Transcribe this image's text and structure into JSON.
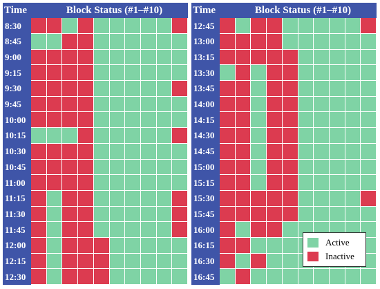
{
  "header": {
    "time_label": "Time",
    "blocks_label": "Block Status (#1–#10)"
  },
  "colors": {
    "active": "#7fd3a5",
    "inactive": "#dc3b50",
    "header_bg": "#3f55a8"
  },
  "legend": {
    "active_label": "Active",
    "inactive_label": "Inactive"
  },
  "left_rows": [
    {
      "time": "8:30",
      "status": [
        0,
        0,
        1,
        0,
        1,
        1,
        1,
        1,
        1,
        0
      ]
    },
    {
      "time": "8:45",
      "status": [
        1,
        1,
        0,
        0,
        1,
        1,
        1,
        1,
        1,
        1
      ]
    },
    {
      "time": "9:00",
      "status": [
        0,
        0,
        0,
        0,
        1,
        1,
        1,
        1,
        1,
        1
      ]
    },
    {
      "time": "9:15",
      "status": [
        0,
        0,
        0,
        0,
        1,
        1,
        1,
        1,
        1,
        1
      ]
    },
    {
      "time": "9:30",
      "status": [
        0,
        0,
        0,
        0,
        1,
        1,
        1,
        1,
        1,
        0
      ]
    },
    {
      "time": "9:45",
      "status": [
        0,
        0,
        0,
        0,
        1,
        1,
        1,
        1,
        1,
        1
      ]
    },
    {
      "time": "10:00",
      "status": [
        0,
        0,
        0,
        0,
        1,
        1,
        1,
        1,
        1,
        1
      ]
    },
    {
      "time": "10:15",
      "status": [
        1,
        1,
        1,
        0,
        1,
        1,
        1,
        1,
        1,
        0
      ]
    },
    {
      "time": "10:30",
      "status": [
        0,
        0,
        0,
        0,
        1,
        1,
        1,
        1,
        1,
        1
      ]
    },
    {
      "time": "10:45",
      "status": [
        0,
        0,
        0,
        0,
        1,
        1,
        1,
        1,
        1,
        1
      ]
    },
    {
      "time": "11:00",
      "status": [
        0,
        0,
        0,
        0,
        1,
        1,
        1,
        1,
        1,
        1
      ]
    },
    {
      "time": "11:15",
      "status": [
        0,
        1,
        0,
        0,
        1,
        1,
        1,
        1,
        1,
        0
      ]
    },
    {
      "time": "11:30",
      "status": [
        0,
        1,
        0,
        0,
        1,
        1,
        1,
        1,
        1,
        0
      ]
    },
    {
      "time": "11:45",
      "status": [
        0,
        1,
        0,
        0,
        1,
        1,
        1,
        1,
        1,
        0
      ]
    },
    {
      "time": "12:00",
      "status": [
        0,
        1,
        0,
        0,
        0,
        1,
        1,
        1,
        1,
        1
      ]
    },
    {
      "time": "12:15",
      "status": [
        0,
        1,
        0,
        0,
        0,
        1,
        1,
        1,
        1,
        1
      ]
    },
    {
      "time": "12:30",
      "status": [
        0,
        1,
        0,
        0,
        0,
        1,
        1,
        1,
        1,
        1
      ]
    }
  ],
  "right_rows": [
    {
      "time": "12:45",
      "status": [
        0,
        1,
        0,
        0,
        1,
        1,
        1,
        1,
        1,
        0
      ]
    },
    {
      "time": "13:00",
      "status": [
        0,
        0,
        0,
        0,
        1,
        1,
        1,
        1,
        1,
        1
      ]
    },
    {
      "time": "13:15",
      "status": [
        0,
        0,
        0,
        0,
        0,
        1,
        1,
        1,
        1,
        1
      ]
    },
    {
      "time": "13:30",
      "status": [
        1,
        0,
        1,
        0,
        0,
        1,
        1,
        1,
        1,
        1
      ]
    },
    {
      "time": "13:45",
      "status": [
        0,
        0,
        1,
        0,
        0,
        1,
        1,
        1,
        1,
        1
      ]
    },
    {
      "time": "14:00",
      "status": [
        0,
        0,
        1,
        0,
        0,
        1,
        1,
        1,
        1,
        1
      ]
    },
    {
      "time": "14:15",
      "status": [
        0,
        0,
        1,
        0,
        0,
        1,
        1,
        1,
        1,
        1
      ]
    },
    {
      "time": "14:30",
      "status": [
        0,
        0,
        1,
        0,
        0,
        1,
        1,
        1,
        1,
        1
      ]
    },
    {
      "time": "14:45",
      "status": [
        0,
        0,
        1,
        0,
        0,
        1,
        1,
        1,
        1,
        1
      ]
    },
    {
      "time": "15:00",
      "status": [
        0,
        0,
        1,
        0,
        0,
        1,
        1,
        1,
        1,
        1
      ]
    },
    {
      "time": "15:15",
      "status": [
        0,
        0,
        1,
        0,
        0,
        1,
        1,
        1,
        1,
        1
      ]
    },
    {
      "time": "15:30",
      "status": [
        0,
        0,
        0,
        0,
        0,
        1,
        1,
        1,
        1,
        0
      ]
    },
    {
      "time": "15:45",
      "status": [
        0,
        0,
        0,
        0,
        0,
        1,
        1,
        1,
        1,
        1
      ]
    },
    {
      "time": "16:00",
      "status": [
        0,
        1,
        0,
        0,
        1,
        1,
        1,
        1,
        1,
        1
      ]
    },
    {
      "time": "16:15",
      "status": [
        0,
        0,
        1,
        1,
        1,
        1,
        1,
        1,
        1,
        1
      ]
    },
    {
      "time": "16:30",
      "status": [
        0,
        1,
        0,
        1,
        1,
        1,
        1,
        1,
        1,
        1
      ]
    },
    {
      "time": "16:45",
      "status": [
        1,
        0,
        1,
        1,
        1,
        1,
        1,
        1,
        1,
        1
      ]
    }
  ]
}
